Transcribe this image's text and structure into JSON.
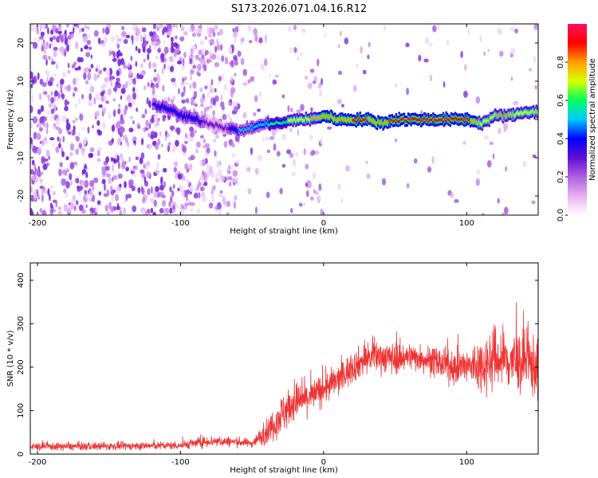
{
  "title": "S173.2026.071.04.16.R12",
  "chart_data": [
    {
      "type": "heatmap",
      "name": "spectrogram",
      "xlabel": "Height of straight line (km)",
      "ylabel": "Frequency (Hz)",
      "xlim": [
        -205,
        150
      ],
      "ylim": [
        -25,
        25
      ],
      "xticks": [
        -200,
        -100,
        0,
        100
      ],
      "yticks": [
        -20,
        -10,
        0,
        10,
        20
      ],
      "colorbar": {
        "label": "Normalized spectral amplitude",
        "range": [
          0.0,
          1.0
        ],
        "ticks": [
          "0.0",
          "0.2",
          "0.4",
          "0.6",
          "0.8"
        ],
        "tick_values": [
          0.0,
          0.2,
          0.4,
          0.6,
          0.8
        ],
        "colors": [
          "#ffffff",
          "#e8b0f0",
          "#b060e0",
          "#6010d0",
          "#0000ff",
          "#00c8ff",
          "#00ff60",
          "#d8ff00",
          "#ffa000",
          "#ff0000",
          "#ff1060"
        ]
      },
      "ridge": {
        "x": [
          -120,
          -110,
          -100,
          -90,
          -80,
          -70,
          -60,
          -50,
          -40,
          -30,
          -20,
          -10,
          0,
          10,
          20,
          30,
          40,
          50,
          60,
          70,
          80,
          90,
          100,
          110,
          120,
          130,
          140,
          150
        ],
        "y": [
          4,
          3,
          1,
          0,
          -1,
          -2,
          -3,
          -2,
          -1,
          -1,
          0,
          0,
          1,
          0,
          0,
          0,
          -1,
          0,
          0,
          0,
          0,
          0,
          0,
          -1,
          1,
          1,
          2,
          2
        ],
        "amplitude": [
          0.35,
          0.4,
          0.4,
          0.4,
          0.3,
          0.3,
          0.45,
          0.5,
          0.55,
          0.6,
          0.7,
          0.75,
          0.8,
          0.8,
          0.85,
          0.85,
          0.8,
          0.9,
          0.9,
          0.9,
          0.9,
          0.9,
          0.9,
          0.7,
          0.75,
          0.75,
          0.7,
          0.7
        ]
      }
    },
    {
      "type": "line",
      "name": "snr",
      "xlabel": "Height of straight line (km)",
      "ylabel": "SNR (10 * v/v)",
      "xlim": [
        -205,
        150
      ],
      "ylim": [
        0,
        440
      ],
      "xticks": [
        -200,
        -100,
        0,
        100
      ],
      "yticks": [
        0,
        100,
        200,
        300,
        400
      ],
      "color": "#ee3333",
      "envelope": {
        "x": [
          -205,
          -150,
          -100,
          -80,
          -60,
          -50,
          -40,
          -30,
          -20,
          -10,
          0,
          10,
          20,
          30,
          40,
          50,
          60,
          70,
          80,
          90,
          100,
          110,
          120,
          130,
          140,
          150
        ],
        "mean": [
          17,
          18,
          20,
          30,
          28,
          25,
          50,
          90,
          120,
          130,
          150,
          170,
          200,
          220,
          225,
          220,
          225,
          220,
          210,
          200,
          200,
          205,
          220,
          215,
          210,
          200
        ],
        "spread": [
          10,
          10,
          10,
          15,
          12,
          10,
          30,
          50,
          50,
          40,
          40,
          40,
          40,
          40,
          40,
          40,
          35,
          35,
          40,
          40,
          50,
          70,
          80,
          80,
          80,
          80
        ]
      }
    }
  ]
}
